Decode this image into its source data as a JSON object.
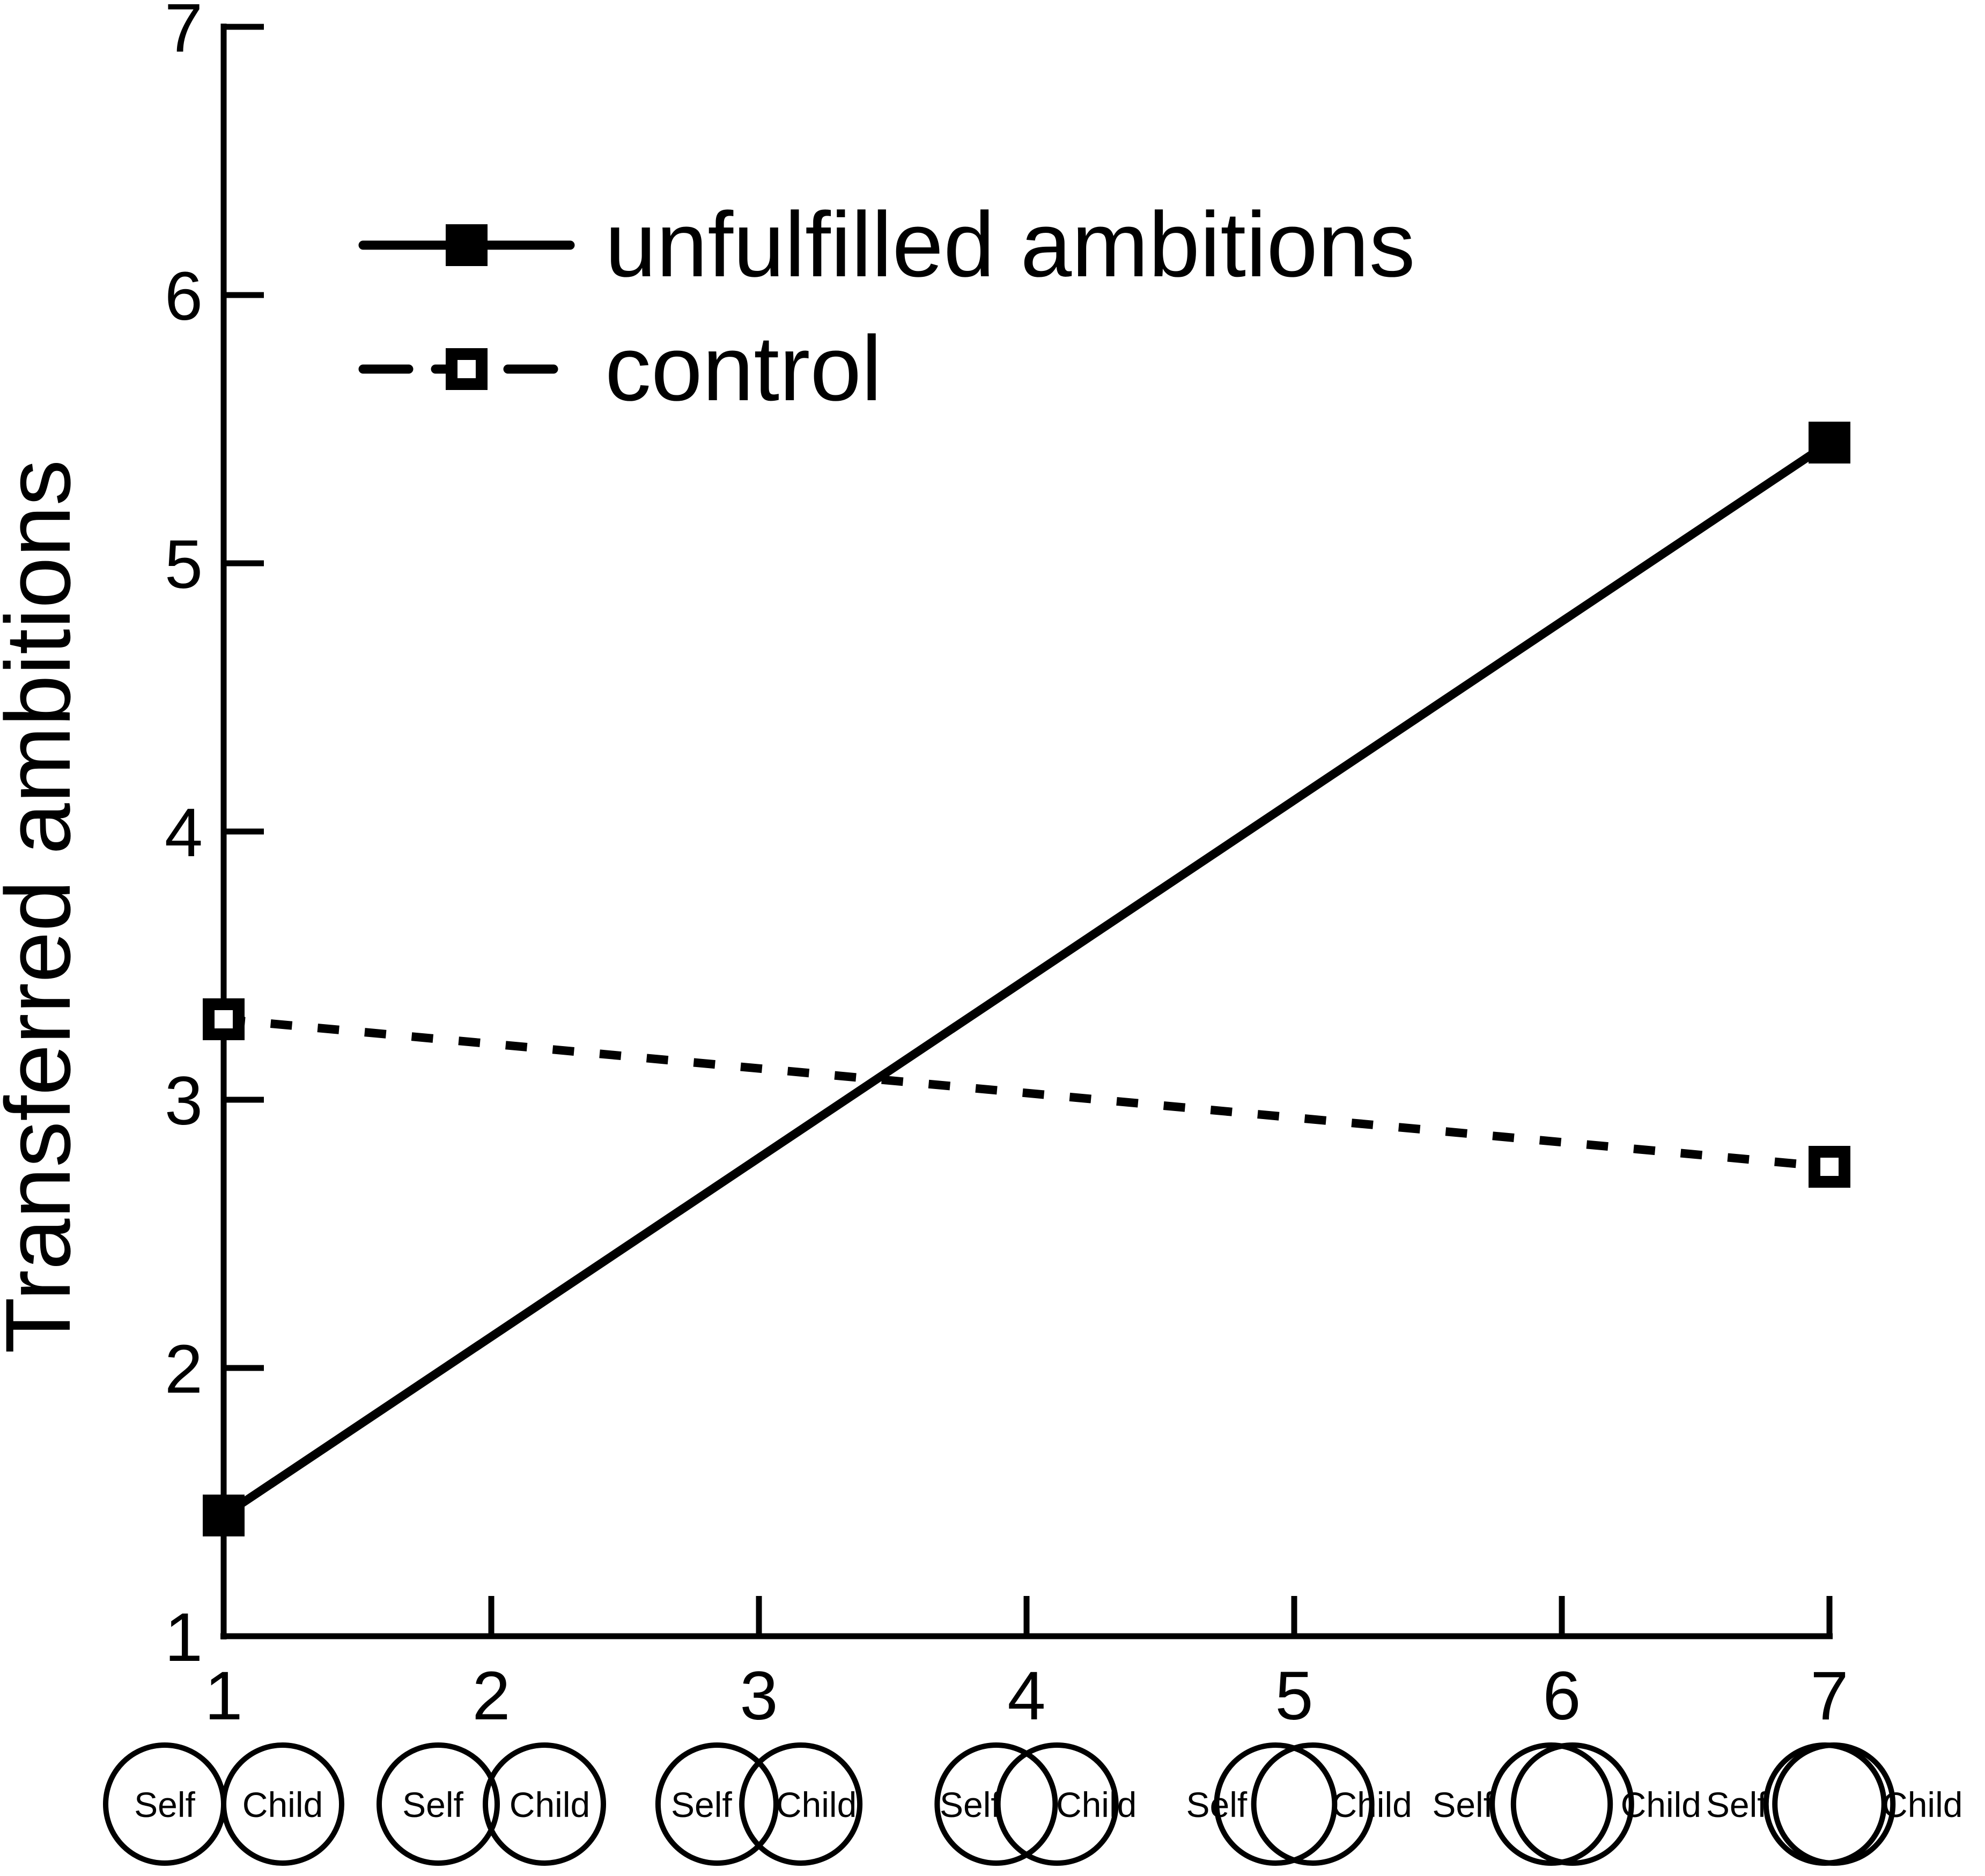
{
  "figure": {
    "background": "#ffffff",
    "ink_color": "#000000"
  },
  "chart_data": {
    "type": "line",
    "title": "",
    "xlabel": "",
    "ylabel": "Transferred ambitions",
    "xlim": [
      1,
      7
    ],
    "ylim": [
      1,
      7
    ],
    "x_ticks": [
      1,
      2,
      3,
      4,
      5,
      6,
      7
    ],
    "y_ticks": [
      1,
      2,
      3,
      4,
      5,
      6,
      7
    ],
    "grid": false,
    "legend_position": "top-left-inside",
    "series": [
      {
        "name": "unfulfilled ambitions",
        "line_style": "solid",
        "marker": "filled-square",
        "x": [
          1,
          7
        ],
        "y": [
          1.45,
          5.45
        ]
      },
      {
        "name": "control",
        "line_style": "dashed",
        "marker": "open-square",
        "x": [
          1,
          7
        ],
        "y": [
          3.3,
          2.75
        ]
      }
    ],
    "x_axis_pictograms": {
      "description": "Inclusion-of-Other-in-Self style circle pairs below each x tick; overlap of Self and Child circles increases from 1 (touching) to 7 (almost fully overlapping)",
      "left_label": "Self",
      "right_label": "Child",
      "positions": [
        {
          "scale": 1,
          "center_distance_radii": 2.0,
          "label_placement": "inside"
        },
        {
          "scale": 2,
          "center_distance_radii": 1.8,
          "label_placement": "inside"
        },
        {
          "scale": 3,
          "center_distance_radii": 1.42,
          "label_placement": "inside"
        },
        {
          "scale": 4,
          "center_distance_radii": 1.03,
          "label_placement": "inside"
        },
        {
          "scale": 5,
          "center_distance_radii": 0.63,
          "label_placement": "on-rim"
        },
        {
          "scale": 6,
          "center_distance_radii": 0.36,
          "label_placement": "outside"
        },
        {
          "scale": 7,
          "center_distance_radii": 0.15,
          "label_placement": "outside"
        }
      ]
    }
  },
  "legend": {
    "items": [
      {
        "label": "unfulfilled ambitions"
      },
      {
        "label": "control"
      }
    ]
  }
}
